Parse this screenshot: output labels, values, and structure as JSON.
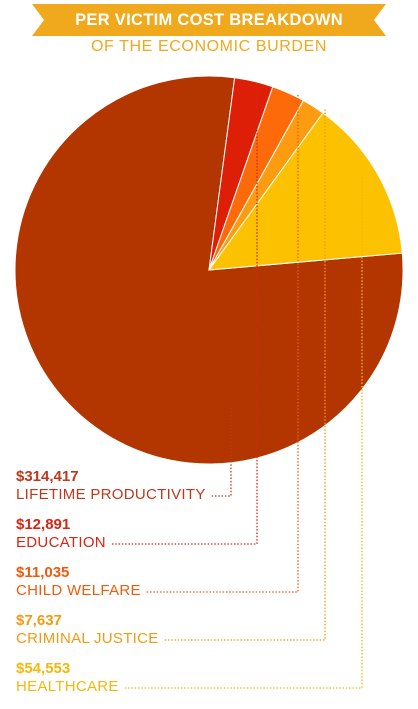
{
  "header": {
    "title": "PER VICTIM COST BREAKDOWN",
    "subtitle": "OF THE ECONOMIC BURDEN"
  },
  "colors": {
    "banner": "#f0a81c",
    "lifetime_productivity": "#b33500",
    "education": "#dd1f08",
    "child_welfare": "#fd6a0a",
    "criminal_justice": "#fd9c10",
    "healthcare": "#fcc100"
  },
  "chart_data": {
    "type": "pie",
    "title": "PER VICTIM COST BREAKDOWN",
    "subtitle": "OF THE ECONOMIC BURDEN",
    "slices": [
      {
        "label": "LIFETIME PRODUCTIVITY",
        "value": 314417,
        "display": "$314,417",
        "color": "#b33500",
        "label_color": "#c0381c"
      },
      {
        "label": "EDUCATION",
        "value": 12891,
        "display": "$12,891",
        "color": "#dd1f08",
        "label_color": "#d92512"
      },
      {
        "label": "CHILD WELFARE",
        "value": 11035,
        "display": "$11,035",
        "color": "#fd6a0a",
        "label_color": "#ef5b0b"
      },
      {
        "label": "CRIMINAL JUSTICE",
        "value": 7637,
        "display": "$7,637",
        "color": "#fd9c10",
        "label_color": "#f39a12"
      },
      {
        "label": "HEALTHCARE",
        "value": 54553,
        "display": "$54,553",
        "color": "#fcc100",
        "label_color": "#f5b80a"
      }
    ]
  }
}
